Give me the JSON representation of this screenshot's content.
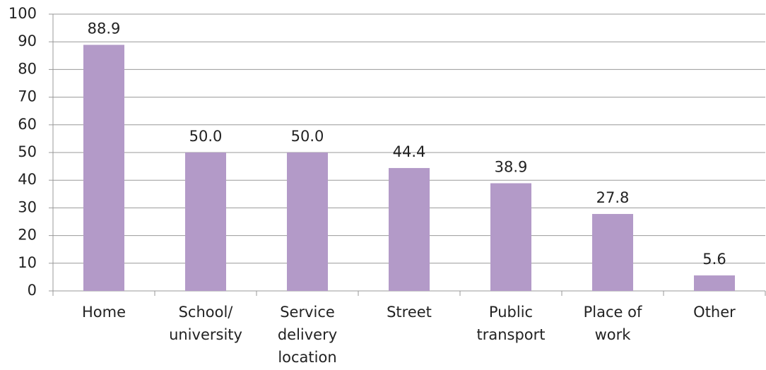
{
  "chart_data": {
    "type": "bar",
    "categories": [
      "Home",
      "School/ university",
      "Service delivery location",
      "Street",
      "Public transport",
      "Place of work",
      "Other"
    ],
    "values": [
      88.9,
      50,
      50,
      44.4,
      38.9,
      27.8,
      5.6
    ],
    "value_labels": [
      "88.9",
      "50.0",
      "50.0",
      "44.4",
      "38.9",
      "27.8",
      "5.6"
    ],
    "color": "#b39ac8",
    "ylim": [
      0,
      100
    ],
    "yticks": [
      0,
      10,
      20,
      30,
      40,
      50,
      60,
      70,
      80,
      90,
      100
    ],
    "grid": true
  }
}
